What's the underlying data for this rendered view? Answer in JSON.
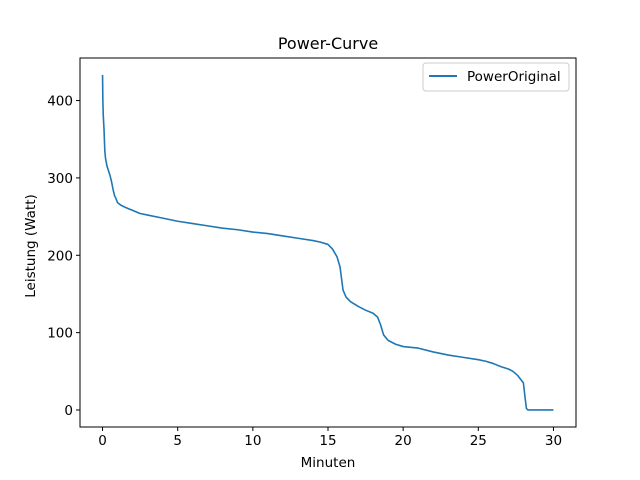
{
  "chart_data": {
    "type": "line",
    "title": "Power-Curve",
    "xlabel": "Minuten",
    "ylabel": "Leistung (Watt)",
    "xlim": [
      -1.5,
      31.5
    ],
    "ylim": [
      -22,
      455
    ],
    "xticks": [
      0,
      5,
      10,
      15,
      20,
      25,
      30
    ],
    "yticks": [
      0,
      100,
      200,
      300,
      400
    ],
    "legend_position": "upper right",
    "grid": false,
    "series": [
      {
        "name": "PowerOriginal",
        "color": "#1f77b4",
        "x": [
          0,
          0.02,
          0.05,
          0.1,
          0.15,
          0.2,
          0.3,
          0.5,
          0.6,
          0.7,
          0.8,
          0.9,
          1.0,
          1.2,
          1.5,
          2.0,
          2.5,
          3,
          4,
          5,
          6,
          7,
          8,
          9,
          10,
          11,
          12,
          13,
          14,
          14.5,
          15,
          15.3,
          15.6,
          15.8,
          15.9,
          16.0,
          16.2,
          16.5,
          17,
          17.5,
          18,
          18.3,
          18.5,
          18.7,
          19.0,
          19.5,
          20,
          21,
          22,
          23,
          24,
          25,
          25.5,
          26,
          26.5,
          27,
          27.3,
          27.6,
          27.8,
          28.0,
          28.1,
          28.2,
          28.3,
          29,
          30
        ],
        "y": [
          433,
          400,
          380,
          362,
          335,
          325,
          315,
          303,
          295,
          285,
          277,
          273,
          268,
          265,
          262,
          258,
          254,
          252,
          248,
          244,
          241,
          238,
          235,
          233,
          230,
          228,
          225,
          222,
          219,
          217,
          214,
          208,
          198,
          185,
          170,
          155,
          146,
          140,
          134,
          129,
          125,
          120,
          110,
          97,
          90,
          85,
          82,
          80,
          75,
          71,
          68,
          65,
          63,
          60,
          56,
          53,
          50,
          45,
          40,
          35,
          18,
          2,
          0,
          0,
          0
        ]
      }
    ]
  }
}
